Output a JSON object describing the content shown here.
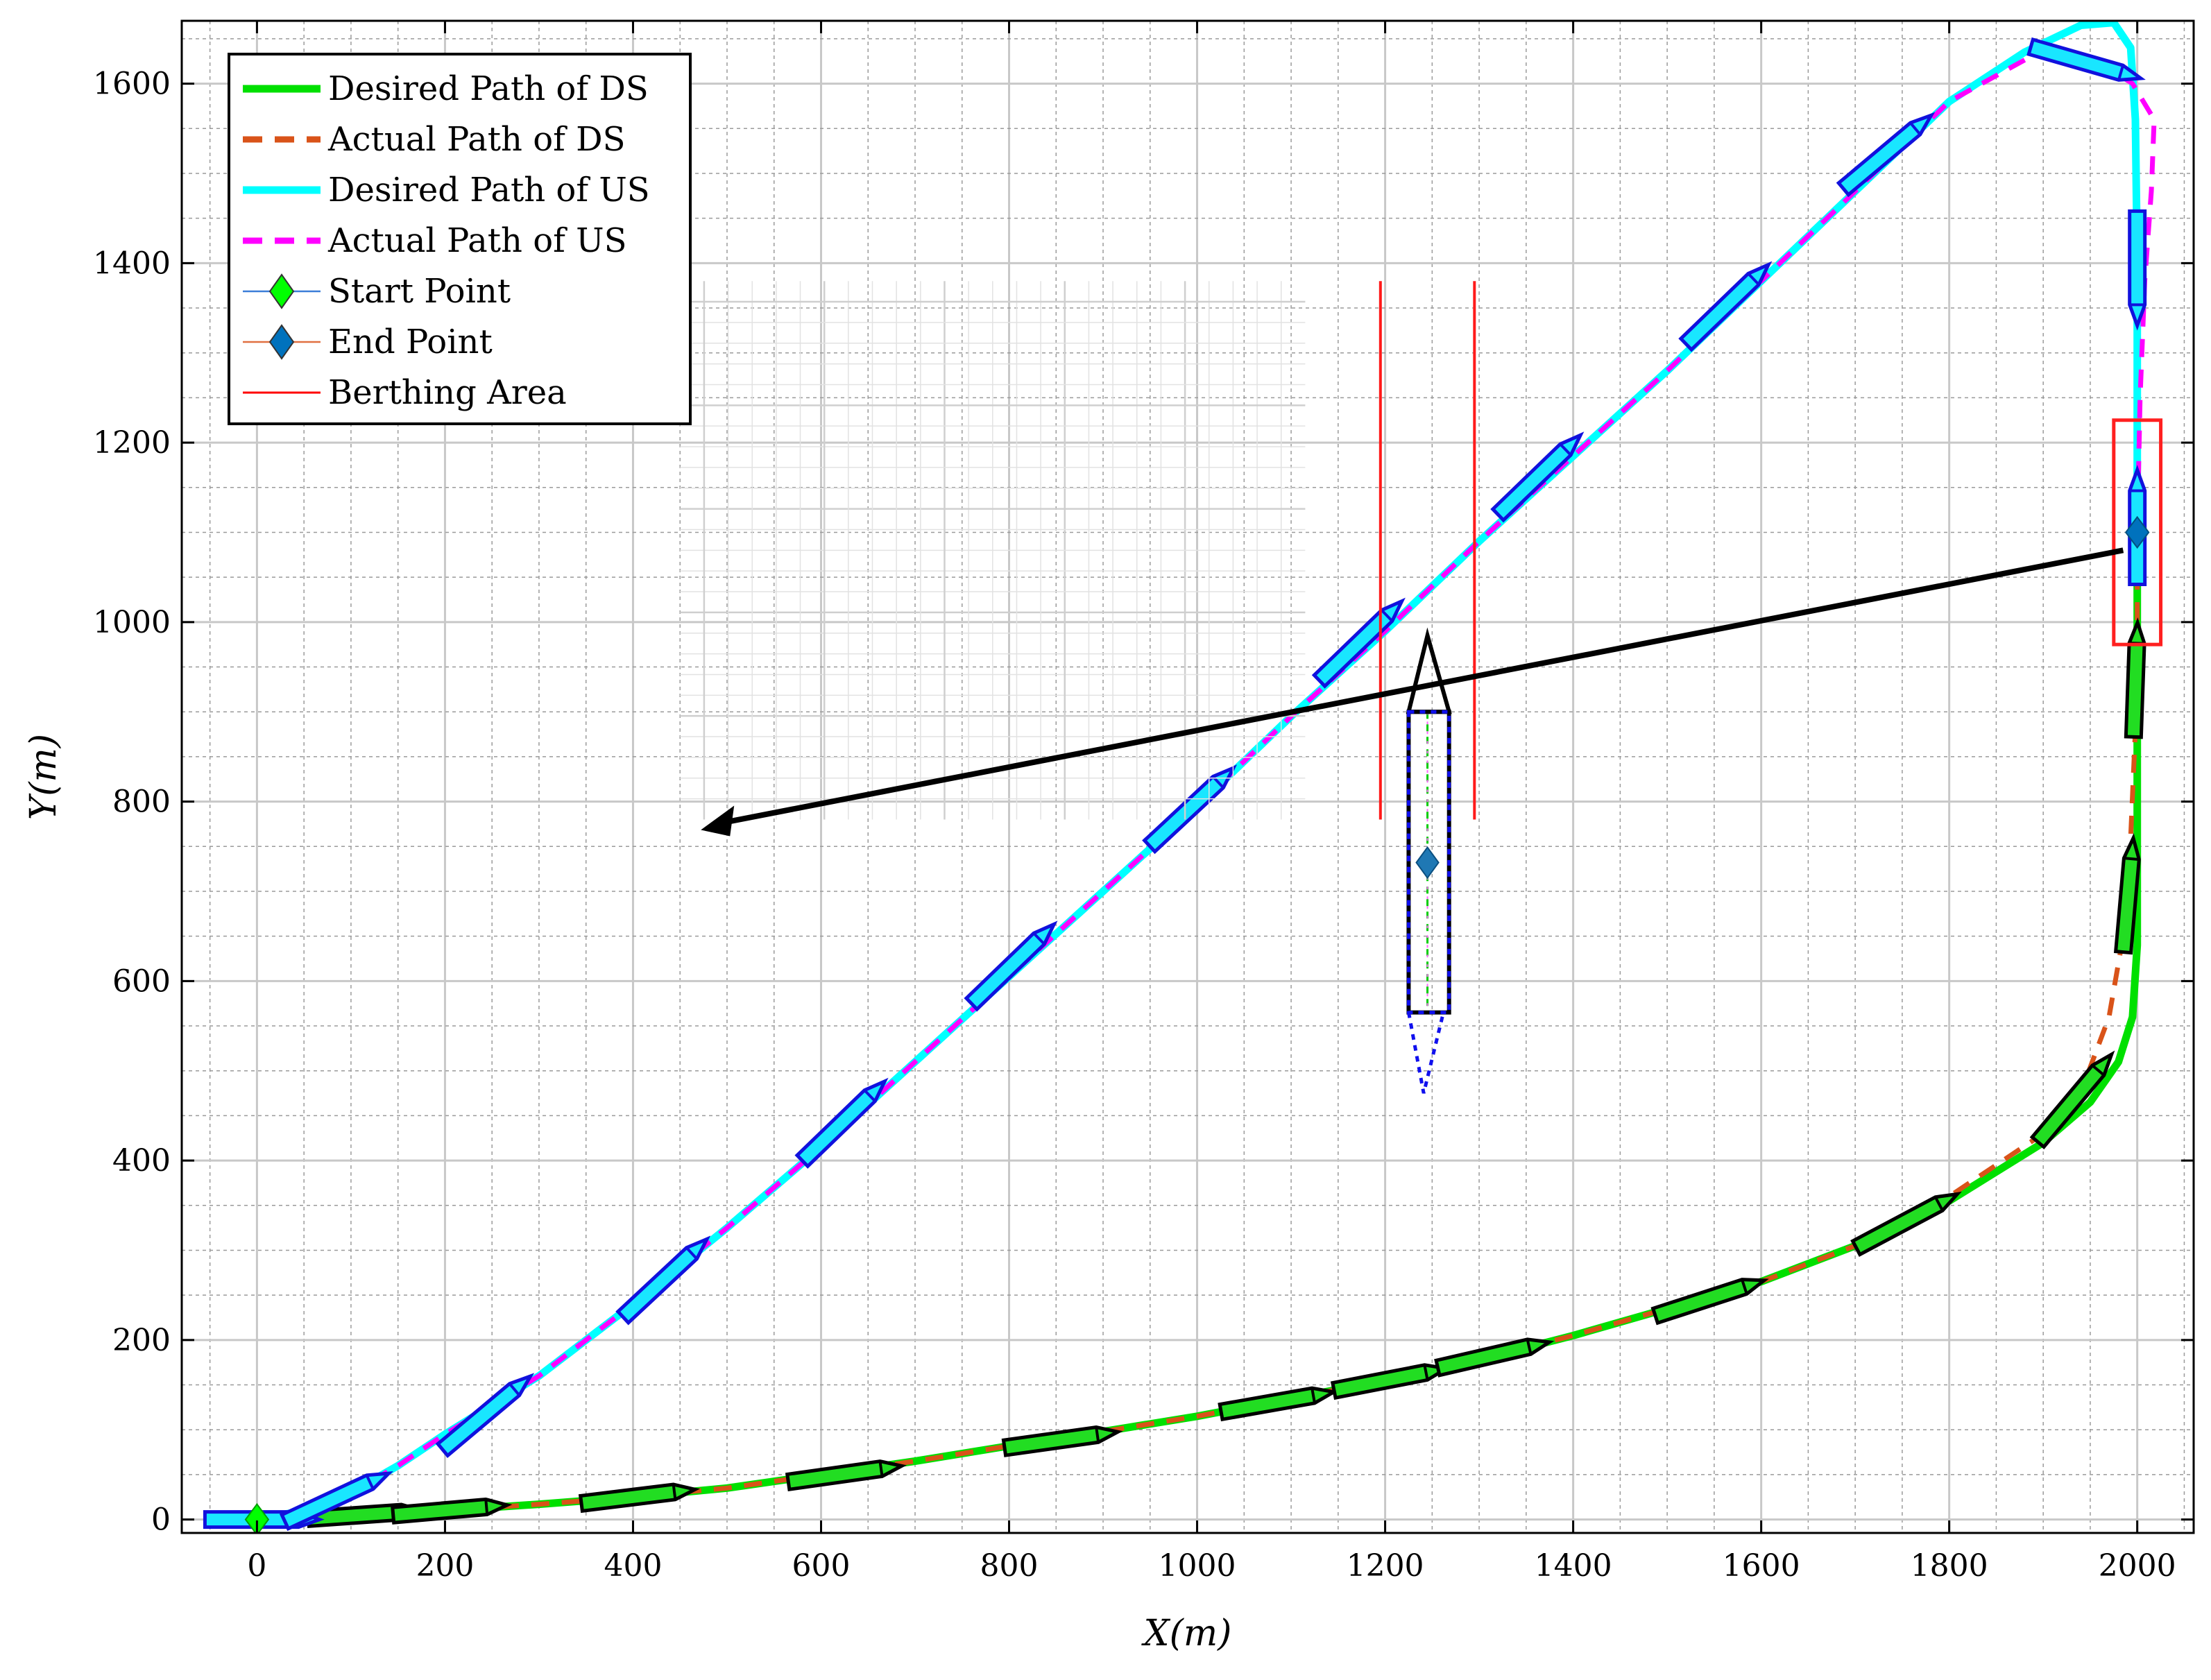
{
  "chart_data": {
    "type": "line",
    "xlabel": "X(m)",
    "ylabel": "Y(m)",
    "xlim": [
      -80,
      2060
    ],
    "ylim": [
      -15,
      1670
    ],
    "xticks": [
      0,
      200,
      400,
      600,
      800,
      1000,
      1200,
      1400,
      1600,
      1800,
      2000
    ],
    "yticks": [
      0,
      200,
      400,
      600,
      800,
      1000,
      1200,
      1400,
      1600
    ],
    "grid": "on (major and minor)",
    "legend_position": "top-left",
    "legend": [
      {
        "label": "Desired Path of DS",
        "style": "solid",
        "color": "#00e000"
      },
      {
        "label": "Actual Path of DS",
        "style": "dashed",
        "color": "#d95319"
      },
      {
        "label": "Desired Path of US",
        "style": "solid",
        "color": "#00ffff"
      },
      {
        "label": "Actual Path of US",
        "style": "dashed",
        "color": "#ff00ff"
      },
      {
        "label": "Start Point",
        "style": "marker-diamond",
        "color": "#00ff00"
      },
      {
        "label": "End Point",
        "style": "marker-diamond",
        "color": "#0072bd"
      },
      {
        "label": "Berthing Area",
        "style": "thin-solid",
        "color": "#ff0000"
      }
    ],
    "series": [
      {
        "name": "Desired Path of DS",
        "points": [
          [
            0,
            0
          ],
          [
            100,
            5
          ],
          [
            200,
            10
          ],
          [
            300,
            17
          ],
          [
            400,
            25
          ],
          [
            500,
            35
          ],
          [
            600,
            50
          ],
          [
            700,
            65
          ],
          [
            800,
            82
          ],
          [
            900,
            98
          ],
          [
            1000,
            115
          ],
          [
            1100,
            135
          ],
          [
            1200,
            155
          ],
          [
            1300,
            178
          ],
          [
            1400,
            205
          ],
          [
            1500,
            235
          ],
          [
            1600,
            265
          ],
          [
            1700,
            305
          ],
          [
            1800,
            355
          ],
          [
            1900,
            420
          ],
          [
            1950,
            465
          ],
          [
            1980,
            510
          ],
          [
            1995,
            560
          ],
          [
            2000,
            640
          ],
          [
            2000,
            800
          ],
          [
            2000,
            1000
          ],
          [
            2000,
            1100
          ]
        ]
      },
      {
        "name": "Actual Path of DS",
        "points": [
          [
            0,
            0
          ],
          [
            100,
            5
          ],
          [
            200,
            10
          ],
          [
            300,
            17
          ],
          [
            400,
            25
          ],
          [
            500,
            35
          ],
          [
            600,
            50
          ],
          [
            700,
            65
          ],
          [
            800,
            82
          ],
          [
            900,
            98
          ],
          [
            1000,
            115
          ],
          [
            1100,
            135
          ],
          [
            1200,
            155
          ],
          [
            1300,
            178
          ],
          [
            1400,
            205
          ],
          [
            1500,
            235
          ],
          [
            1600,
            265
          ],
          [
            1700,
            305
          ],
          [
            1800,
            360
          ],
          [
            1900,
            430
          ],
          [
            1945,
            490
          ],
          [
            1970,
            560
          ],
          [
            1985,
            650
          ],
          [
            1993,
            760
          ],
          [
            1998,
            880
          ],
          [
            2000,
            1000
          ],
          [
            2000,
            1100
          ]
        ]
      },
      {
        "name": "Desired Path of US",
        "points": [
          [
            -40,
            0
          ],
          [
            0,
            0
          ],
          [
            50,
            10
          ],
          [
            100,
            30
          ],
          [
            150,
            60
          ],
          [
            200,
            95
          ],
          [
            300,
            160
          ],
          [
            400,
            240
          ],
          [
            500,
            325
          ],
          [
            600,
            415
          ],
          [
            700,
            510
          ],
          [
            800,
            605
          ],
          [
            900,
            700
          ],
          [
            1000,
            795
          ],
          [
            1100,
            895
          ],
          [
            1200,
            990
          ],
          [
            1300,
            1090
          ],
          [
            1400,
            1185
          ],
          [
            1500,
            1280
          ],
          [
            1600,
            1380
          ],
          [
            1700,
            1480
          ],
          [
            1800,
            1580
          ],
          [
            1880,
            1635
          ],
          [
            1940,
            1665
          ],
          [
            1975,
            1668
          ],
          [
            1993,
            1640
          ],
          [
            1998,
            1560
          ],
          [
            2000,
            1400
          ],
          [
            2000,
            1200
          ],
          [
            2000,
            1100
          ]
        ]
      },
      {
        "name": "Actual Path of US",
        "points": [
          [
            0,
            0
          ],
          [
            50,
            10
          ],
          [
            100,
            30
          ],
          [
            150,
            60
          ],
          [
            200,
            95
          ],
          [
            300,
            160
          ],
          [
            400,
            240
          ],
          [
            500,
            325
          ],
          [
            600,
            415
          ],
          [
            700,
            510
          ],
          [
            800,
            605
          ],
          [
            900,
            700
          ],
          [
            1000,
            795
          ],
          [
            1100,
            895
          ],
          [
            1200,
            990
          ],
          [
            1300,
            1090
          ],
          [
            1400,
            1185
          ],
          [
            1500,
            1280
          ],
          [
            1600,
            1380
          ],
          [
            1700,
            1480
          ],
          [
            1800,
            1580
          ],
          [
            1890,
            1632
          ],
          [
            1950,
            1630
          ],
          [
            1995,
            1600
          ],
          [
            2018,
            1560
          ],
          [
            2015,
            1480
          ],
          [
            2008,
            1380
          ],
          [
            2003,
            1250
          ],
          [
            2000,
            1100
          ]
        ]
      }
    ],
    "markers": [
      {
        "name": "Start Point",
        "x": 0,
        "y": 0
      },
      {
        "name": "End Point",
        "x": 2000,
        "y": 1100
      }
    ],
    "berthing_area": {
      "x": [
        1975,
        2025
      ],
      "y": [
        975,
        1225
      ]
    },
    "ds_vessels": [
      [
        110,
        5,
        4
      ],
      [
        200,
        10,
        5
      ],
      [
        400,
        25,
        7
      ],
      [
        620,
        50,
        8
      ],
      [
        850,
        88,
        8
      ],
      [
        1080,
        130,
        10
      ],
      [
        1200,
        155,
        11
      ],
      [
        1310,
        182,
        13
      ],
      [
        1540,
        245,
        18
      ],
      [
        1750,
        330,
        28
      ],
      [
        1930,
        465,
        50
      ],
      [
        1990,
        690,
        85
      ],
      [
        1998,
        930,
        88
      ]
    ],
    "us_vessels": [
      [
        0,
        0,
        0
      ],
      [
        80,
        22,
        25
      ],
      [
        240,
        115,
        40
      ],
      [
        430,
        265,
        43
      ],
      [
        620,
        440,
        44
      ],
      [
        800,
        615,
        44
      ],
      [
        990,
        790,
        43
      ],
      [
        1170,
        975,
        44
      ],
      [
        1360,
        1160,
        44
      ],
      [
        1560,
        1350,
        44
      ],
      [
        1730,
        1520,
        40
      ],
      [
        1940,
        1625,
        -16
      ],
      [
        2000,
        1400,
        -90
      ],
      [
        2000,
        1100,
        90
      ]
    ],
    "inset": {
      "axes_box": [
        1115,
        450,
        1380,
        780
      ],
      "berthing_lines_x": [
        1195,
        1295
      ]
    }
  }
}
